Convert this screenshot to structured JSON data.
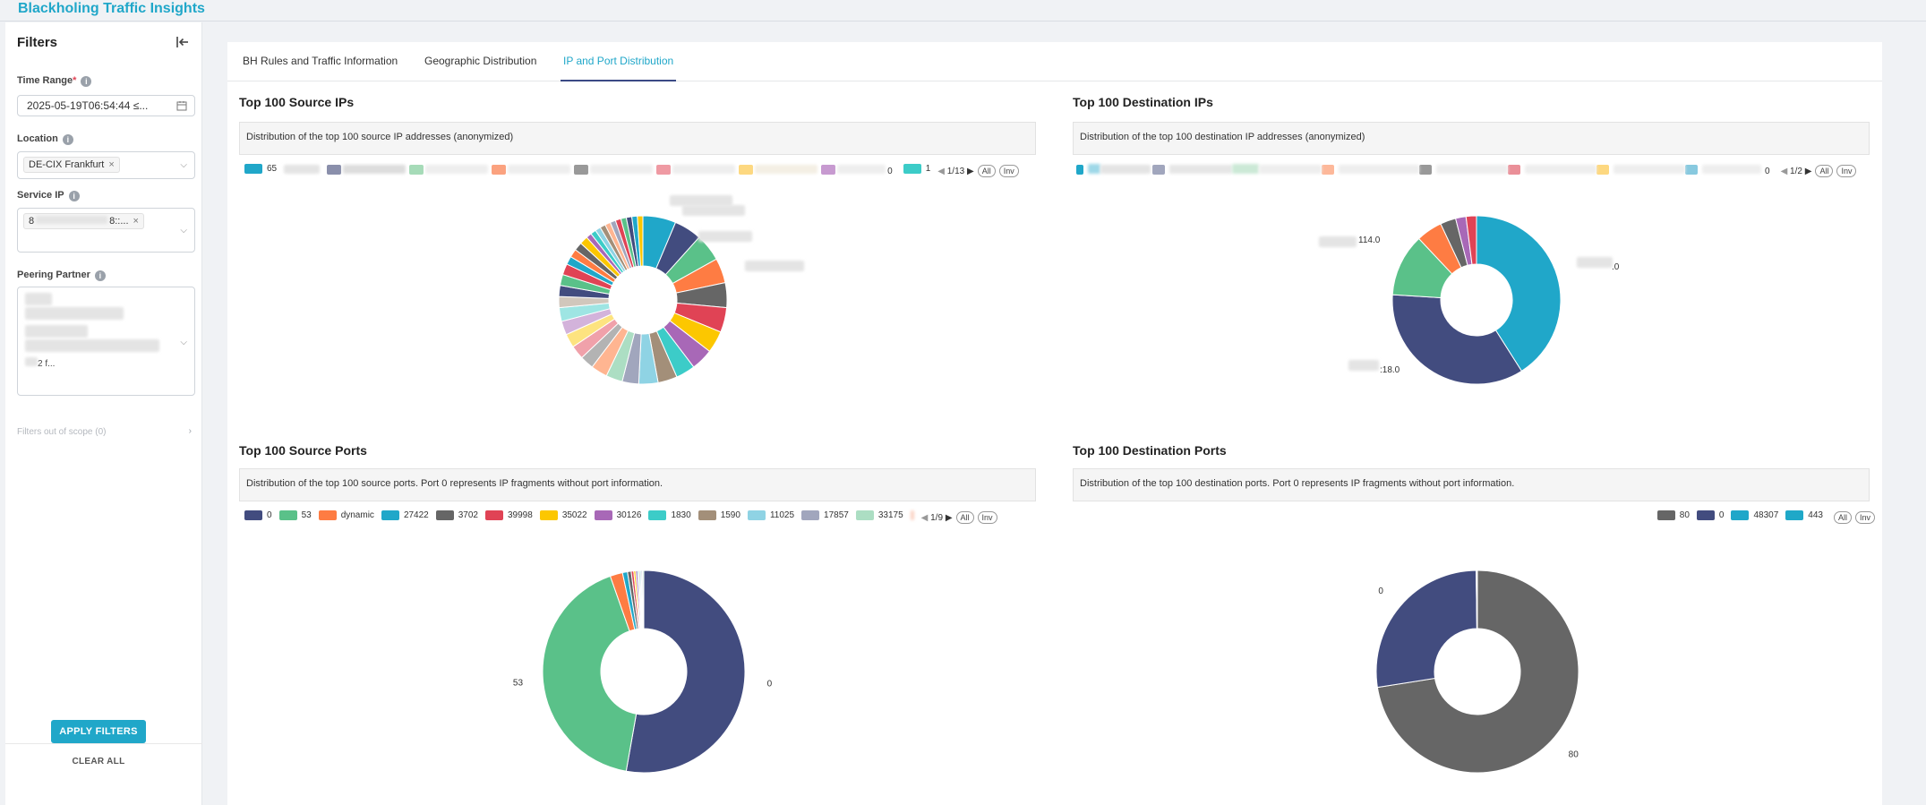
{
  "app": {
    "title": "Blackholing Traffic Insights"
  },
  "sidebar": {
    "title": "Filters",
    "time_range": {
      "label": "Time Range",
      "value": "2025-05-19T06:54:44 ≤..."
    },
    "location": {
      "label": "Location",
      "tag": "DE-CIX Frankfurt"
    },
    "service_ip": {
      "label": "Service IP",
      "tag_start": "8",
      "tag_end": "8::..."
    },
    "peering_partner": {
      "label": "Peering Partner",
      "tail": "2 f..."
    },
    "out_of_scope": "Filters out of scope (0)",
    "apply": "APPLY FILTERS",
    "clear": "CLEAR ALL"
  },
  "tabs": [
    {
      "label": "BH Rules and Traffic Information"
    },
    {
      "label": "Geographic Distribution"
    },
    {
      "label": "IP and Port Distribution"
    }
  ],
  "colors": {
    "accent": "#20a7c9",
    "navy": "#424c7f",
    "green": "#5ac189",
    "orange": "#fe7c43",
    "gray": "#666666",
    "red": "#e04355",
    "yellow": "#fcc700",
    "purple": "#a868b7",
    "teal": "#3cccc8"
  },
  "panels": {
    "src_ips": {
      "title": "Top 100 Source IPs",
      "desc": "Distribution of the top 100 source IP addresses (anonymized)",
      "legend_first": "65",
      "legend_zero": "0",
      "legend_one": "1",
      "page": "1/13",
      "all": "All",
      "inv": "Inv"
    },
    "dst_ips": {
      "title": "Top 100 Destination IPs",
      "desc": "Distribution of the top 100 destination IP addresses (anonymized)",
      "legend_zero": "0",
      "page": "1/2",
      "all": "All",
      "inv": "Inv",
      "label_a": "114.0",
      "label_b": ".0",
      "label_c": ":18.0"
    },
    "src_ports": {
      "title": "Top 100 Source Ports",
      "desc": "Distribution of the top 100 source ports. Port 0 represents IP fragments without port information.",
      "page": "1/9",
      "all": "All",
      "inv": "Inv"
    },
    "dst_ports": {
      "title": "Top 100 Destination Ports",
      "desc": "Distribution of the top 100 destination ports. Port 0 represents IP fragments without port information.",
      "all": "All",
      "inv": "Inv"
    }
  },
  "chart_data": [
    {
      "type": "pie",
      "title": "Top 100 Destination IPs",
      "slices": [
        {
          "label": ".0",
          "value": 41,
          "color": "#20a7c9"
        },
        {
          "label": ":18.0",
          "value": 35,
          "color": "#424c7f"
        },
        {
          "label": "114.0",
          "value": 12,
          "color": "#5ac189"
        },
        {
          "label": "",
          "value": 5,
          "color": "#fe7c43"
        },
        {
          "label": "",
          "value": 3,
          "color": "#666666"
        },
        {
          "label": "",
          "value": 2,
          "color": "#a868b7"
        },
        {
          "label": "",
          "value": 2,
          "color": "#e04355"
        }
      ]
    },
    {
      "type": "pie",
      "title": "Top 100 Source Ports",
      "slices": [
        {
          "label": "0",
          "value": 53,
          "color": "#424c7f"
        },
        {
          "label": "53",
          "value": 42,
          "color": "#5ac189"
        },
        {
          "label": "dynamic",
          "value": 2,
          "color": "#fe7c43"
        },
        {
          "label": "27422",
          "value": 0.8,
          "color": "#20a7c9"
        },
        {
          "label": "3702",
          "value": 0.6,
          "color": "#666666"
        },
        {
          "label": "39998",
          "value": 0.4,
          "color": "#e04355"
        },
        {
          "label": "35022",
          "value": 0.3,
          "color": "#fcc700"
        },
        {
          "label": "30126",
          "value": 0.3,
          "color": "#a868b7"
        },
        {
          "label": "1830",
          "value": 0.2,
          "color": "#3cccc8"
        },
        {
          "label": "1590",
          "value": 0.2,
          "color": "#a38f79"
        },
        {
          "label": "11025",
          "value": 0.2,
          "color": "#8fd3e4"
        },
        {
          "label": "17857",
          "value": 0.2,
          "color": "#a1a6bd"
        },
        {
          "label": "33175",
          "value": 0.2,
          "color": "#acdec3"
        }
      ]
    },
    {
      "type": "pie",
      "title": "Top 100 Destination Ports",
      "slices": [
        {
          "label": "80",
          "value": 72.5,
          "color": "#666666"
        },
        {
          "label": "0",
          "value": 27.3,
          "color": "#424c7f"
        },
        {
          "label": "48307",
          "value": 0.1,
          "color": "#20a7c9"
        },
        {
          "label": "443",
          "value": 0.1,
          "color": "#1fa8c8"
        }
      ]
    },
    {
      "type": "pie",
      "title": "Top 100 Source IPs",
      "slices": [
        {
          "label": "",
          "value": 6,
          "color": "#20a7c9"
        },
        {
          "label": "",
          "value": 5,
          "color": "#424c7f"
        },
        {
          "label": "",
          "value": 5,
          "color": "#5ac189"
        },
        {
          "label": "",
          "value": 4.5,
          "color": "#fe7c43"
        },
        {
          "label": "",
          "value": 4.5,
          "color": "#666666"
        },
        {
          "label": "",
          "value": 4.5,
          "color": "#e04355"
        },
        {
          "label": "",
          "value": 4,
          "color": "#fcc700"
        },
        {
          "label": "",
          "value": 4,
          "color": "#a868b7"
        },
        {
          "label": "",
          "value": 3.5,
          "color": "#3cccc8"
        },
        {
          "label": "",
          "value": 3.5,
          "color": "#a38f79"
        },
        {
          "label": "",
          "value": 3.5,
          "color": "#8fd3e4"
        },
        {
          "label": "",
          "value": 3,
          "color": "#a1a6bd"
        },
        {
          "label": "",
          "value": 3,
          "color": "#acdec3"
        },
        {
          "label": "",
          "value": 3,
          "color": "#ffb591"
        },
        {
          "label": "",
          "value": 2.5,
          "color": "#b3b3b3"
        },
        {
          "label": "",
          "value": 2.5,
          "color": "#f0a1aa"
        },
        {
          "label": "",
          "value": 2.5,
          "color": "#fde380"
        },
        {
          "label": "",
          "value": 2.5,
          "color": "#d3b3db"
        },
        {
          "label": "",
          "value": 2.5,
          "color": "#9ee5e3"
        },
        {
          "label": "",
          "value": 2,
          "color": "#d1c7bc"
        },
        {
          "label": "",
          "value": 2,
          "color": "#424c7f"
        },
        {
          "label": "",
          "value": 2,
          "color": "#5ac189"
        },
        {
          "label": "",
          "value": 2,
          "color": "#e04355"
        },
        {
          "label": "",
          "value": 1.5,
          "color": "#20a7c9"
        },
        {
          "label": "",
          "value": 1.5,
          "color": "#fe7c43"
        },
        {
          "label": "",
          "value": 1.5,
          "color": "#666666"
        },
        {
          "label": "",
          "value": 1.5,
          "color": "#fcc700"
        },
        {
          "label": "",
          "value": 1,
          "color": "#a868b7"
        },
        {
          "label": "",
          "value": 1,
          "color": "#3cccc8"
        },
        {
          "label": "",
          "value": 1,
          "color": "#8fd3e4"
        },
        {
          "label": "",
          "value": 1,
          "color": "#a38f79"
        },
        {
          "label": "",
          "value": 1,
          "color": "#ffb591"
        },
        {
          "label": "",
          "value": 1,
          "color": "#a1a6bd"
        },
        {
          "label": "",
          "value": 1,
          "color": "#e04355"
        },
        {
          "label": "",
          "value": 1,
          "color": "#5ac189"
        },
        {
          "label": "",
          "value": 1,
          "color": "#424c7f"
        },
        {
          "label": "",
          "value": 1,
          "color": "#20a7c9"
        },
        {
          "label": "",
          "value": 1,
          "color": "#fcc700"
        }
      ]
    }
  ],
  "legends": {
    "src_ports": [
      {
        "label": "0",
        "color": "#424c7f"
      },
      {
        "label": "53",
        "color": "#5ac189"
      },
      {
        "label": "dynamic",
        "color": "#fe7c43"
      },
      {
        "label": "27422",
        "color": "#20a7c9"
      },
      {
        "label": "3702",
        "color": "#666666"
      },
      {
        "label": "39998",
        "color": "#e04355"
      },
      {
        "label": "35022",
        "color": "#fcc700"
      },
      {
        "label": "30126",
        "color": "#a868b7"
      },
      {
        "label": "1830",
        "color": "#3cccc8"
      },
      {
        "label": "1590",
        "color": "#a38f79"
      },
      {
        "label": "11025",
        "color": "#8fd3e4"
      },
      {
        "label": "17857",
        "color": "#a1a6bd"
      },
      {
        "label": "33175",
        "color": "#acdec3"
      }
    ],
    "dst_ports": [
      {
        "label": "80",
        "color": "#666666"
      },
      {
        "label": "0",
        "color": "#424c7f"
      },
      {
        "label": "48307",
        "color": "#20a7c9"
      },
      {
        "label": "443",
        "color": "#1fa8c8"
      }
    ]
  }
}
